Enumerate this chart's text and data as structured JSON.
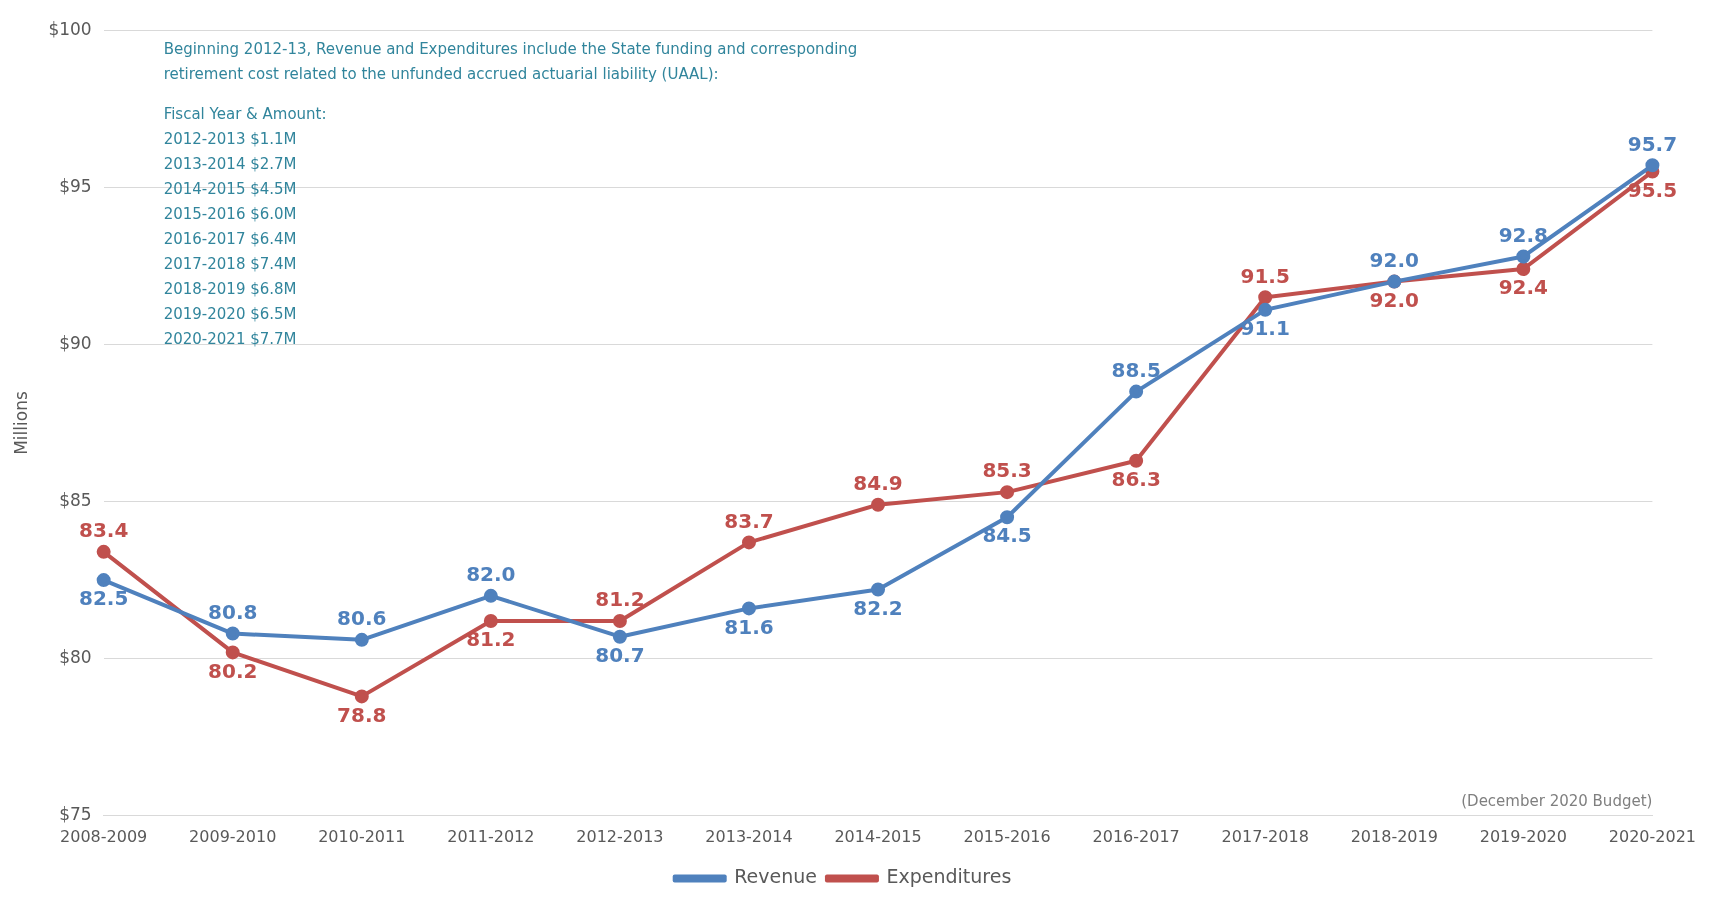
{
  "chart_data": {
    "type": "line",
    "ylabel": "Millions",
    "categories": [
      "2008-2009",
      "2009-2010",
      "2010-2011",
      "2011-2012",
      "2012-2013",
      "2013-2014",
      "2014-2015",
      "2015-2016",
      "2016-2017",
      "2017-2018",
      "2018-2019",
      "2019-2020",
      "2020-2021"
    ],
    "series": [
      {
        "name": "Revenue",
        "color": "#4f81bd",
        "values": [
          82.5,
          80.8,
          80.6,
          82.0,
          80.7,
          81.6,
          82.2,
          84.5,
          88.5,
          91.1,
          92.0,
          92.8,
          95.7
        ],
        "value_labels": [
          "82.5",
          "80.8",
          "80.6",
          "82.0",
          "80.7",
          "81.6",
          "82.2",
          "84.5",
          "88.5",
          "91.1",
          "92.0",
          "92.8",
          "95.7"
        ]
      },
      {
        "name": "Expenditures",
        "color": "#c0504d",
        "values": [
          83.4,
          80.2,
          78.8,
          81.2,
          81.2,
          83.7,
          84.9,
          85.3,
          86.3,
          91.5,
          92.0,
          92.4,
          95.5
        ],
        "value_labels": [
          "83.4",
          "80.2",
          "78.8",
          "81.2",
          "81.2",
          "83.7",
          "84.9",
          "85.3",
          "86.3",
          "91.5",
          "92.0",
          "92.4",
          "95.5"
        ]
      }
    ],
    "ylim": [
      75,
      100
    ],
    "yticks": [
      {
        "value": 75,
        "label": "$75"
      },
      {
        "value": 80,
        "label": "$80"
      },
      {
        "value": 85,
        "label": "$85"
      },
      {
        "value": 90,
        "label": "$90"
      },
      {
        "value": 95,
        "label": "$95"
      },
      {
        "value": 100,
        "label": "$100"
      }
    ],
    "grid": "y",
    "legend": "bottom",
    "marker": "circle",
    "line_style": "solid",
    "annotations": [
      "Beginning 2012-13, Revenue and Expenditures include the State funding and corresponding",
      "retirement cost related to the unfunded accrued actuarial liability (UAAL):",
      "Fiscal Year & Amount:",
      "2012-2013 $1.1M",
      "2013-2014 $2.7M",
      "2014-2015 $4.5M",
      "2015-2016 $6.0M",
      "2016-2017 $6.4M",
      "2017-2018 $7.4M",
      "2018-2019 $6.8M",
      "2019-2020 $6.5M",
      "2020-2021 $7.7M",
      "(December 2020 Budget)"
    ]
  }
}
